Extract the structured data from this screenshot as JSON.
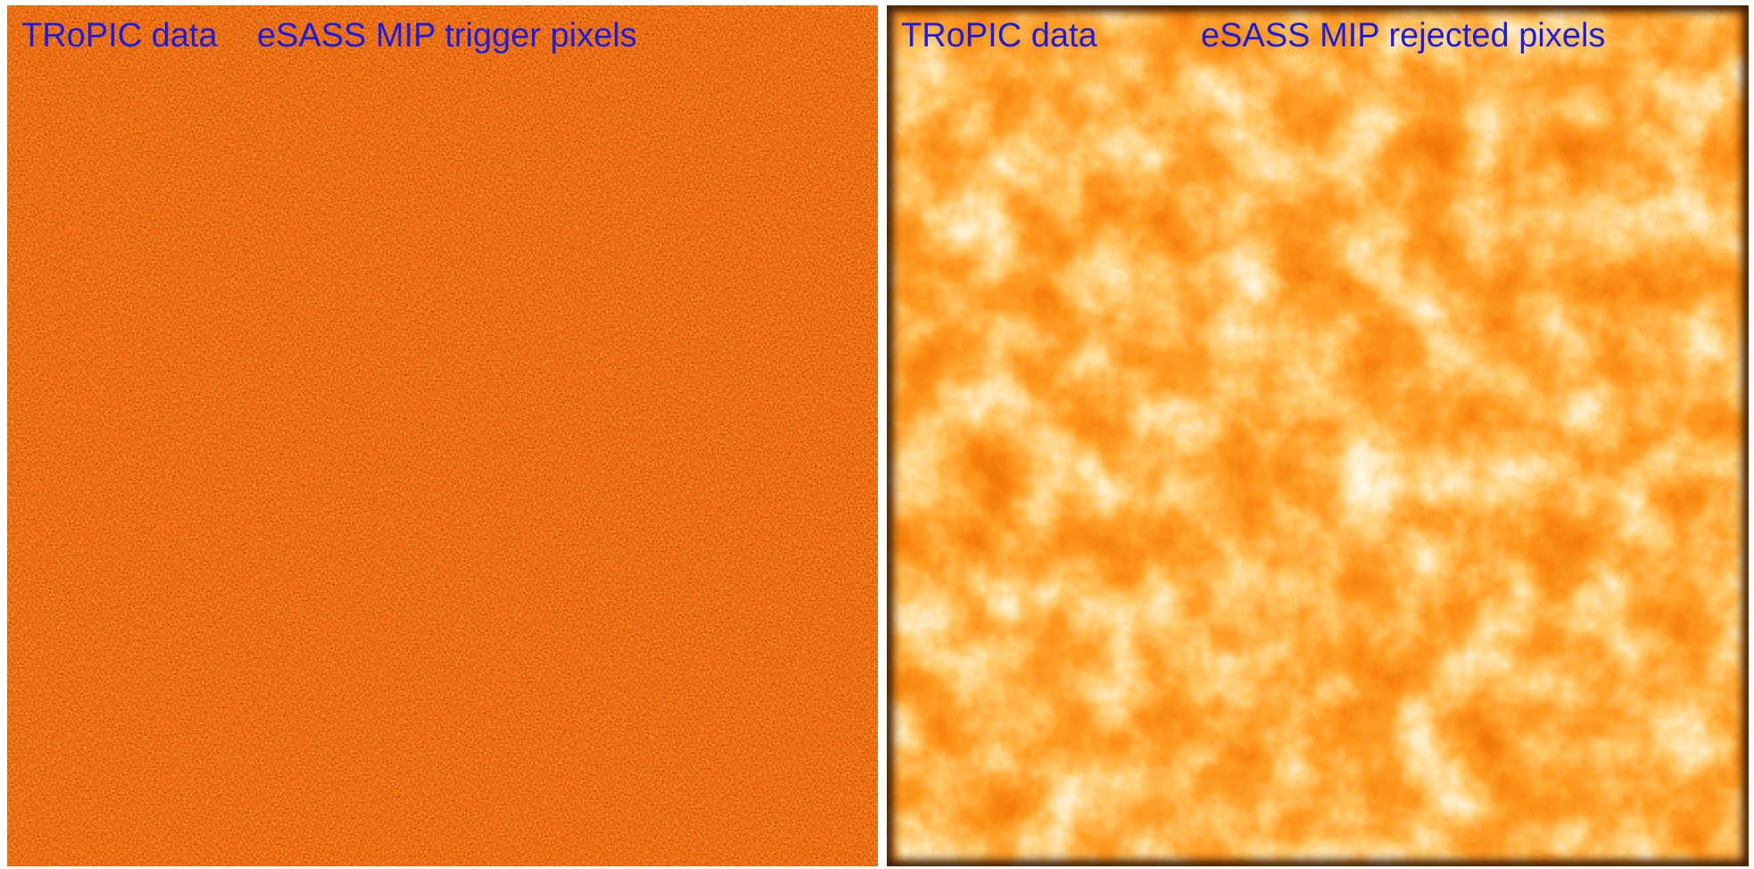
{
  "panels": [
    {
      "labels": [
        "TRoPIC data",
        "eSASS MIP trigger pixels"
      ]
    },
    {
      "labels": [
        "TRoPIC data",
        "eSASS MIP rejected pixels"
      ]
    }
  ]
}
